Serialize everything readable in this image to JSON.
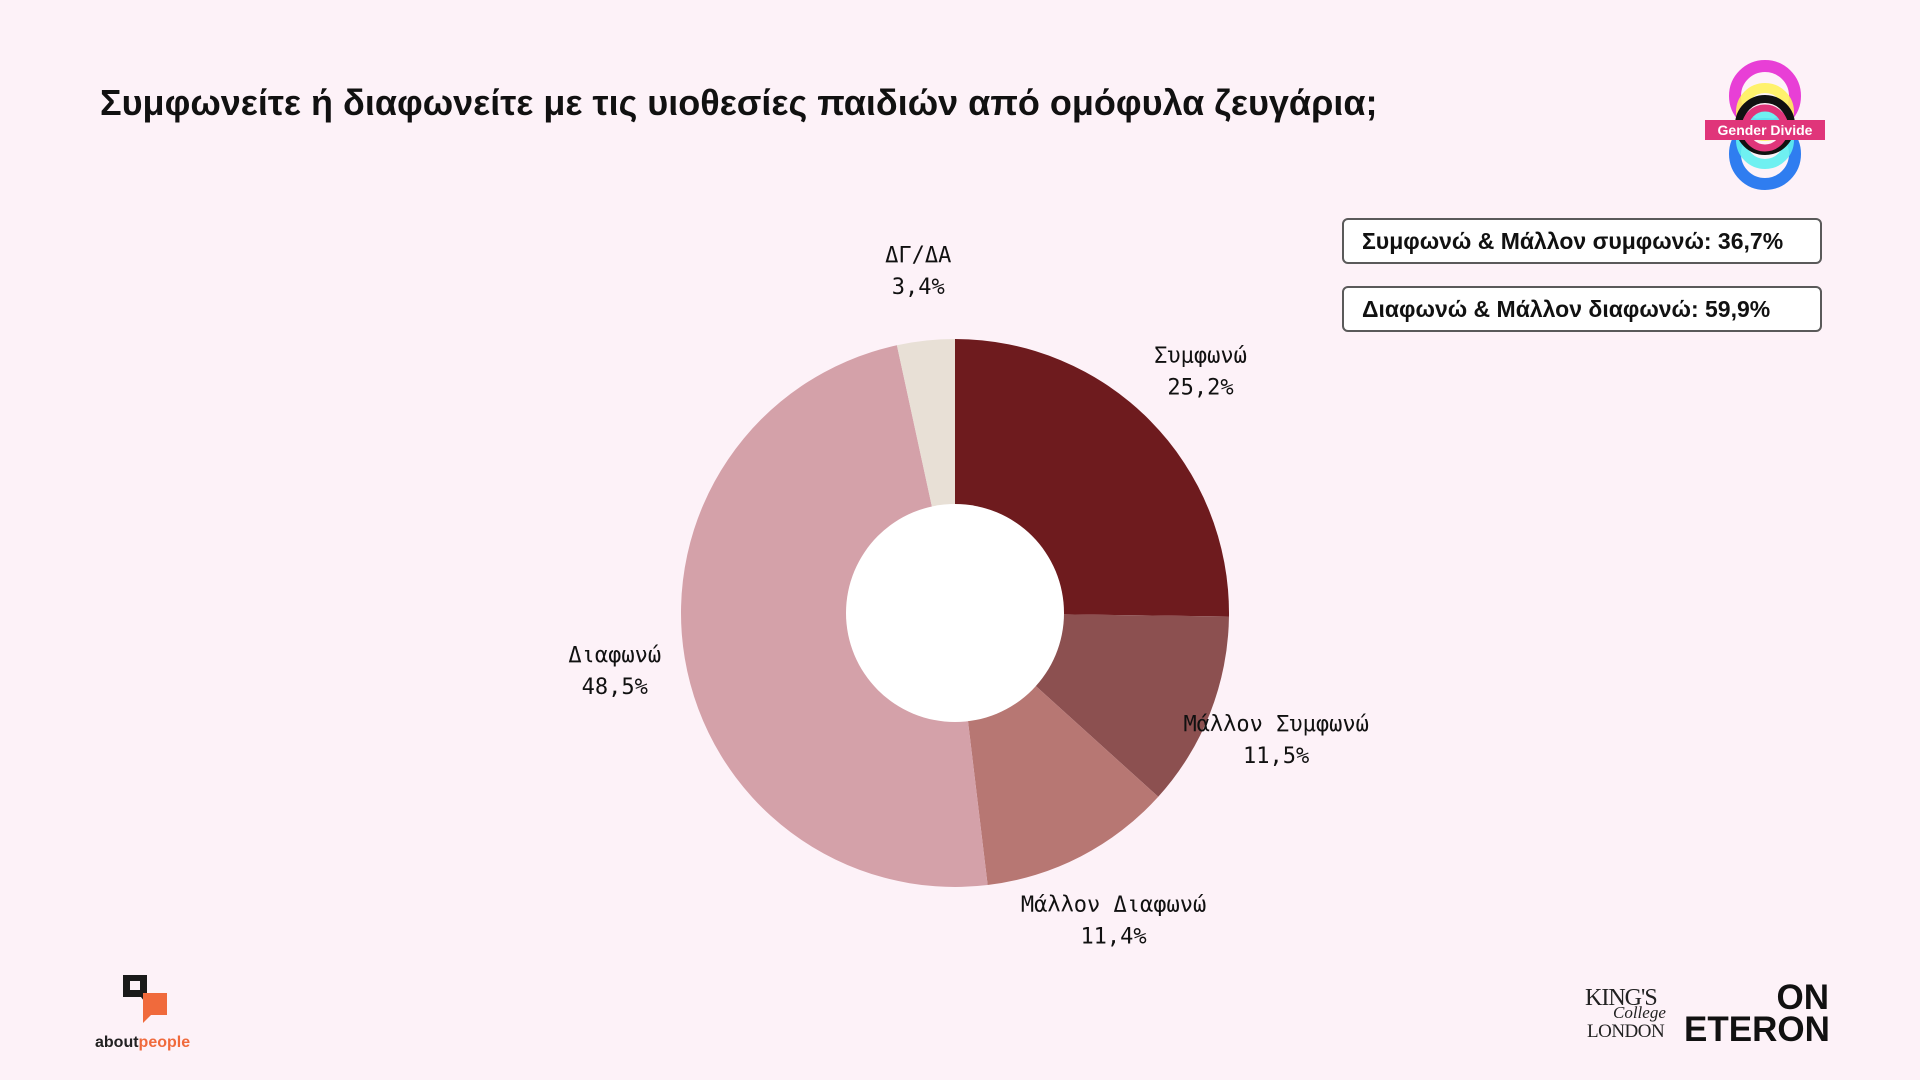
{
  "title": "Συμφωνείτε ή διαφωνείτε με τις υιοθεσίες παιδιών από ομόφυλα ζευγάρια;",
  "summary": [
    "Συμφωνώ & Μάλλον συμφωνώ: 36,7%",
    "Διαφωνώ & Μάλλον διαφωνώ: 59,9%"
  ],
  "logos": {
    "gender_divide": "Gender Divide",
    "about_people_1": "about",
    "about_people_2": "people",
    "kcl_1": "KING'S",
    "kcl_2": "College",
    "kcl_3": "LONDON",
    "oe_1": "ON",
    "oe_2": "ETERON"
  },
  "chart_data": {
    "type": "pie",
    "donut": true,
    "slices": [
      {
        "label": "Συμφωνώ",
        "value": 25.2,
        "value_label": "25,2%",
        "color": "#6e1b1e"
      },
      {
        "label": "Μάλλον Συμφωνώ",
        "value": 11.5,
        "value_label": "11,5%",
        "color": "#8c5050"
      },
      {
        "label": "Μάλλον Διαφωνώ",
        "value": 11.4,
        "value_label": "11,4%",
        "color": "#b77773"
      },
      {
        "label": "Διαφωνώ",
        "value": 48.5,
        "value_label": "48,5%",
        "color": "#d4a1a9"
      },
      {
        "label": "ΔΓ/ΔΑ",
        "value": 3.4,
        "value_label": "3,4%",
        "color": "#e8e0d6"
      }
    ]
  }
}
